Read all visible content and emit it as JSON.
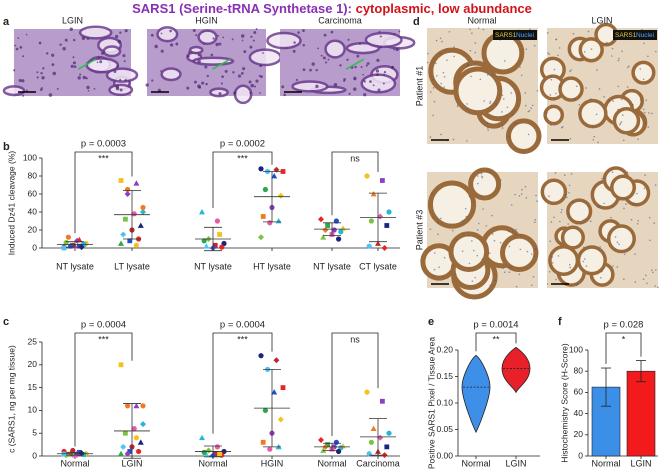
{
  "title_parts": [
    {
      "text": "SARS1 (Serine-tRNA Synthetase 1): ",
      "color": "#8a2fb5"
    },
    {
      "text": "cytoplasmic, low abundance",
      "color": "#d0141c"
    }
  ],
  "panel_a": {
    "letter": "a",
    "labels": [
      "LGIN",
      "HGIN",
      "Carcinoma"
    ]
  },
  "panel_d": {
    "letter": "d",
    "columns": [
      "Normal",
      "LGIN"
    ],
    "rows": [
      "Patient #1",
      "Patient #3"
    ],
    "legend": [
      "SARS1",
      "Nuclei"
    ]
  },
  "chart_data": [
    {
      "type": "dot",
      "panel": "b",
      "ylabel": "Induced Dz41 cleavage (%)",
      "categories": [
        "NT lysate",
        "LT lysate",
        "NT lysate",
        "HT lysate",
        "NT lysate",
        "CT lysate"
      ],
      "values": [
        [
          1,
          2,
          3,
          5,
          8,
          12,
          4,
          2,
          6,
          1,
          3,
          0,
          9,
          2
        ],
        [
          75,
          72,
          65,
          40,
          38,
          32,
          25,
          20,
          15,
          10,
          8,
          5,
          3,
          60,
          45
        ],
        [
          40,
          30,
          10,
          5,
          3,
          2,
          1,
          0,
          8,
          15
        ],
        [
          88,
          87,
          85,
          85,
          80,
          65,
          58,
          45,
          35,
          30,
          28,
          12
        ],
        [
          32,
          30,
          25,
          22,
          20,
          20,
          18,
          15,
          12,
          10
        ],
        [
          80,
          75,
          60,
          40,
          35,
          30,
          25,
          5,
          2,
          0
        ]
      ],
      "means": [
        4,
        37,
        10,
        57,
        21,
        34
      ],
      "sds": [
        3,
        27,
        13,
        28,
        7,
        27
      ],
      "comparisons": [
        {
          "p": "p = 0.0003",
          "sig": "***"
        },
        {
          "p": "p = 0.0002",
          "sig": "***"
        },
        {
          "p": null,
          "sig": "ns"
        }
      ],
      "ylim": [
        0,
        100
      ],
      "yticks": [
        0,
        20,
        40,
        60,
        80,
        100
      ],
      "point_colors": [
        "#e4262a",
        "#1f4fd1",
        "#2aa84a",
        "#f4c21b",
        "#8e3fc1",
        "#f07a1f",
        "#27b6d6",
        "#e85aa8",
        "#7cc242",
        "#1a237e",
        "#c1272d",
        "#4fc3f7"
      ],
      "markers": [
        "circle",
        "square",
        "triangle",
        "circle",
        "diamond"
      ]
    },
    {
      "type": "dot",
      "panel": "c",
      "ylabel": "c (SARS1, ng per mg tissue)",
      "categories": [
        "Normal",
        "LGIN",
        "Normal",
        "HGIN",
        "Normal",
        "Carcinoma"
      ],
      "values": [
        [
          1,
          0.8,
          0.6,
          0.5,
          0.5,
          0.4,
          0.3,
          0.2,
          0.2,
          0.6,
          1.2,
          0.4
        ],
        [
          20,
          11,
          11,
          7,
          6,
          5,
          3,
          2,
          2,
          1,
          1,
          0.5,
          4,
          0.5,
          11
        ],
        [
          4,
          2,
          1.2,
          1,
          0.5,
          0.3,
          0.2,
          0.1,
          0.8,
          0.5
        ],
        [
          22,
          21,
          19,
          15,
          14,
          10,
          8,
          5,
          3,
          2,
          1.5
        ],
        [
          3.5,
          3,
          2.5,
          2.2,
          2,
          2,
          1.8,
          1.5,
          1.2,
          1
        ],
        [
          14,
          12,
          6,
          5,
          4,
          3,
          2,
          1,
          0.5,
          0.2
        ]
      ],
      "means": [
        0.5,
        5.5,
        1,
        10.5,
        2,
        4.2
      ],
      "sds": [
        0.3,
        6,
        1.2,
        8.5,
        0.8,
        4
      ],
      "comparisons": [
        {
          "p": "p = 0.0004",
          "sig": "***"
        },
        {
          "p": "p = 0.0004",
          "sig": "***"
        },
        {
          "p": null,
          "sig": "ns"
        }
      ],
      "ylim": [
        0,
        25
      ],
      "yticks": [
        0,
        5,
        10,
        15,
        20,
        25
      ],
      "point_colors": [
        "#e4262a",
        "#1f4fd1",
        "#2aa84a",
        "#f4c21b",
        "#8e3fc1",
        "#f07a1f",
        "#27b6d6",
        "#e85aa8",
        "#7cc242",
        "#1a237e",
        "#c1272d",
        "#4fc3f7"
      ],
      "markers": [
        "circle",
        "square",
        "triangle",
        "circle",
        "diamond"
      ]
    },
    {
      "type": "violin",
      "panel": "e",
      "ylabel": "Positive SARS1 Pixel / Tissue Area",
      "categories": [
        "Normal",
        "LGIN"
      ],
      "colors": [
        "#3d8fe8",
        "#e8202a"
      ],
      "min": [
        0.045,
        0.12
      ],
      "max": [
        0.19,
        0.205
      ],
      "median": [
        0.13,
        0.165
      ],
      "comparisons": [
        {
          "p": "p = 0.0014",
          "sig": "**"
        }
      ],
      "ylim": [
        0,
        0.2
      ],
      "yticks": [
        {
          "value": 0,
          "label": "0.00"
        },
        {
          "value": 0.05,
          "label": "0.05"
        },
        {
          "value": 0.1,
          "label": "0.10"
        },
        {
          "value": 0.15,
          "label": "0.15"
        },
        {
          "value": 0.2,
          "label": "0.20"
        }
      ]
    },
    {
      "type": "bar",
      "panel": "f",
      "ylabel": "Histochemistry Score (H-Score)",
      "categories": [
        "Normal",
        "LGIN"
      ],
      "colors": [
        "#3b8fe6",
        "#f21a1a"
      ],
      "values": [
        65,
        80
      ],
      "errors": [
        18,
        10
      ],
      "comparisons": [
        {
          "p": "p = 0.028",
          "sig": "*"
        }
      ],
      "ylim": [
        0,
        100
      ],
      "yticks": [
        0,
        20,
        40,
        60,
        80,
        100
      ]
    }
  ]
}
